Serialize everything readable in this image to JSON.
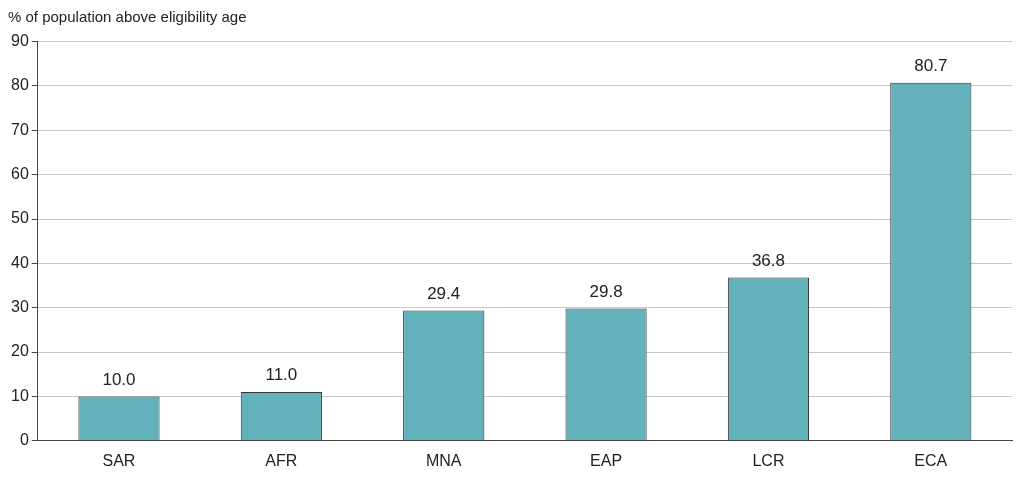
{
  "chart_data": {
    "type": "bar",
    "ylabel": "% of population above eligibility age",
    "categories": [
      "SAR",
      "AFR",
      "MNA",
      "EAP",
      "LCR",
      "ECA"
    ],
    "values": [
      10.0,
      11.0,
      29.4,
      29.8,
      36.8,
      80.7
    ],
    "value_labels": [
      "10.0",
      "11.0",
      "29.4",
      "29.8",
      "36.8",
      "80.7"
    ],
    "color": "#63b1bb",
    "ylim": [
      0,
      90
    ],
    "yticks": [
      0,
      10,
      20,
      30,
      40,
      50,
      60,
      70,
      80,
      90
    ],
    "grid": "y",
    "legend": false
  }
}
